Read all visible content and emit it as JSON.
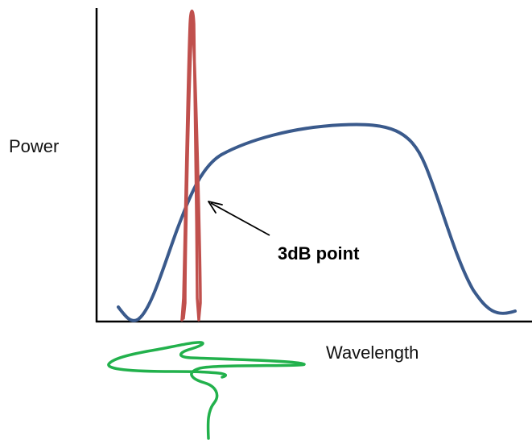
{
  "diagram": {
    "y_axis_label": "Power",
    "x_axis_label": "Wavelength",
    "annotation": {
      "label": "3dB point"
    },
    "colors": {
      "axes": "#000000",
      "broad_spectrum_curve": "#3a5a8c",
      "narrow_peak_curve": "#c0504d",
      "wave_curve": "#22b14c",
      "arrow": "#000000",
      "background": "#ffffff"
    }
  }
}
